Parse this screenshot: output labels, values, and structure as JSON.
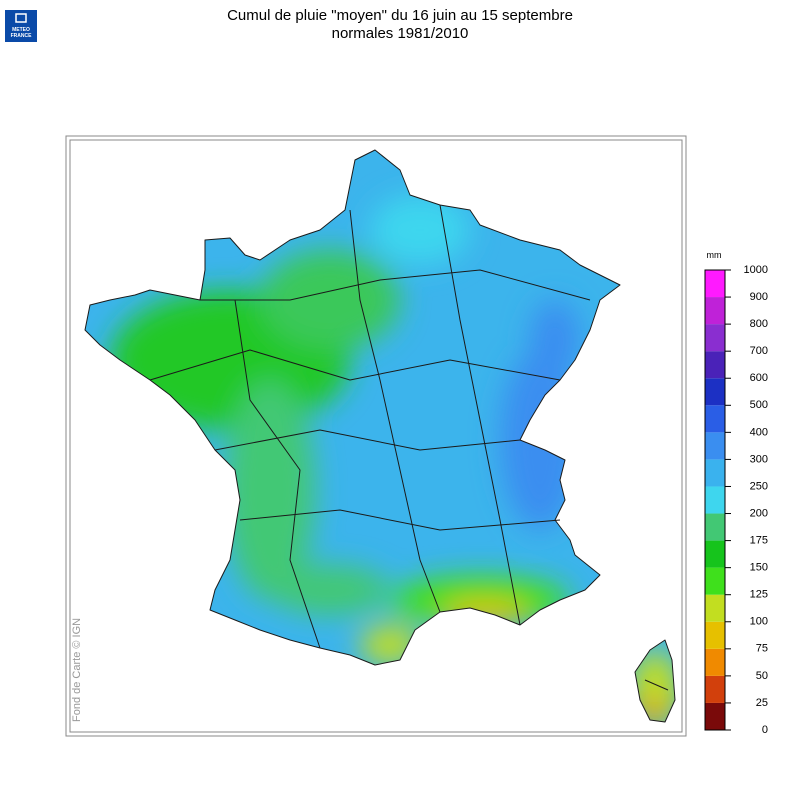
{
  "header": {
    "title": [
      "Cumul de pluie \"moyen\" du 16 juin au 15 septembre",
      "normales 1981/2010"
    ],
    "logo": [
      "METEO",
      "FRANCE"
    ]
  },
  "map": {
    "credit": "Fond de Carte © IGN"
  },
  "legend": {
    "unit": "mm",
    "ticks": [
      0,
      25,
      50,
      75,
      100,
      125,
      150,
      175,
      200,
      250,
      300,
      400,
      500,
      600,
      700,
      800,
      900,
      1000
    ],
    "colors": [
      "#7a0a0a",
      "#d2400c",
      "#f08a00",
      "#e6c000",
      "#c2de20",
      "#3fe01c",
      "#16c41c",
      "#42c874",
      "#3ed6ee",
      "#3ab2ee",
      "#3a8ef0",
      "#2a5ee6",
      "#1c30c4",
      "#4a22b8",
      "#8a2ed0",
      "#bf22d8",
      "#ff1aff"
    ]
  }
}
